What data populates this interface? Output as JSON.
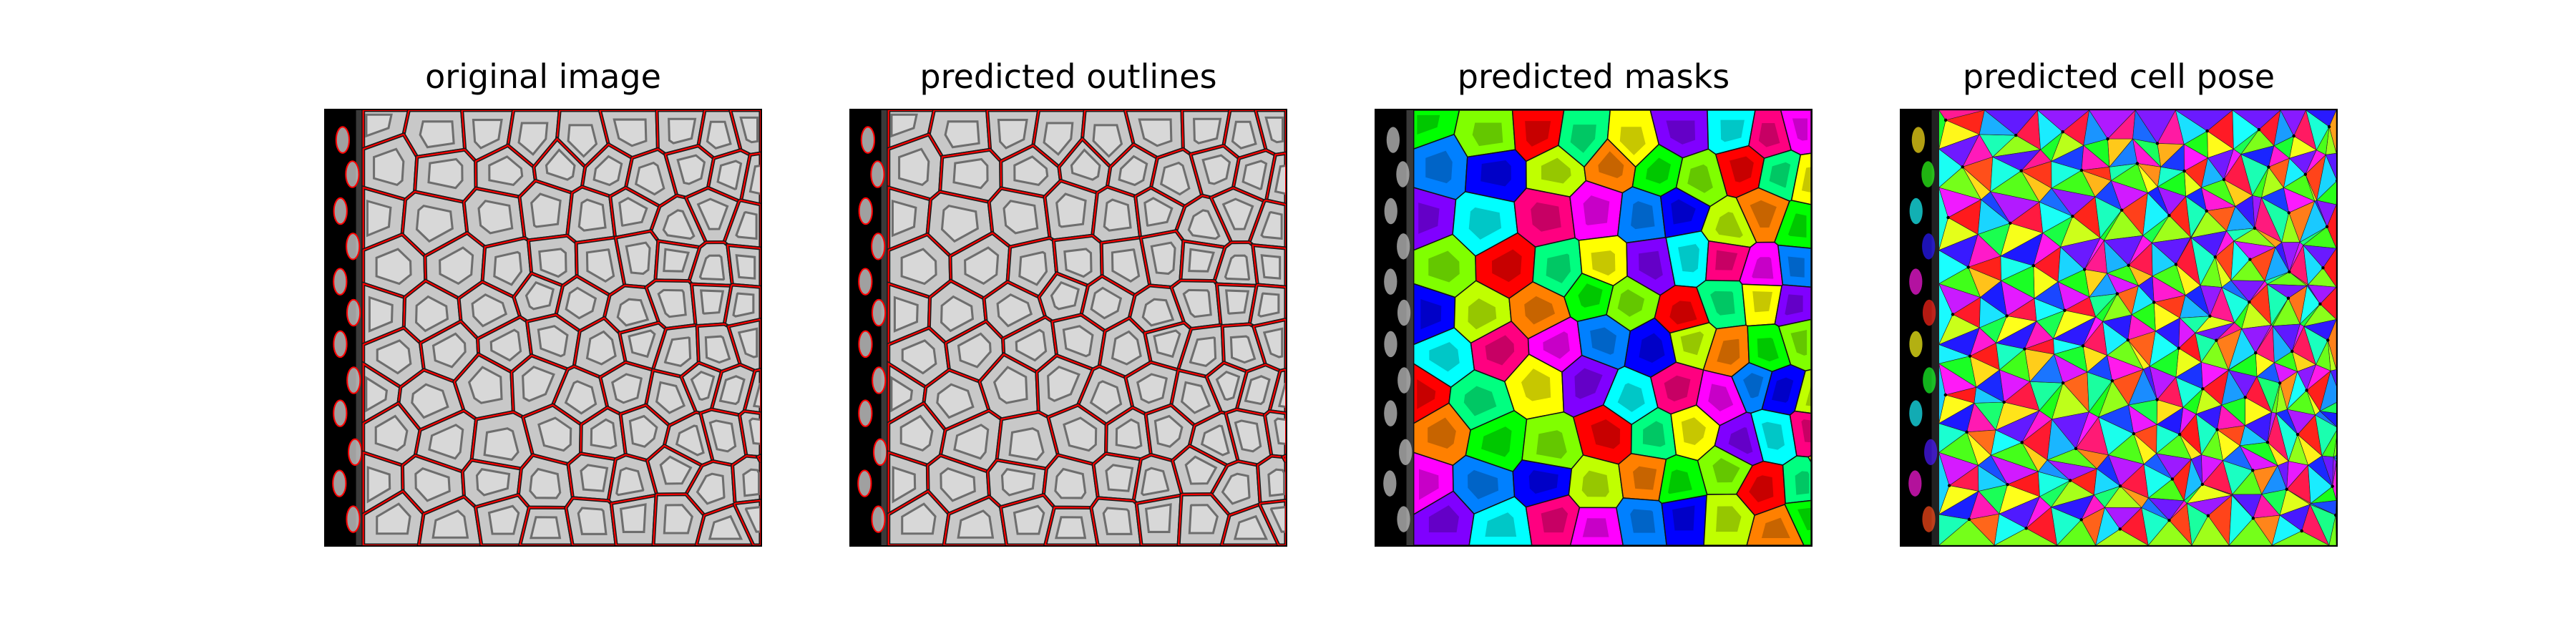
{
  "figure": {
    "panels": [
      {
        "title": "original image",
        "kind": "grayscale"
      },
      {
        "title": "predicted outlines",
        "kind": "outlines"
      },
      {
        "title": "predicted masks",
        "kind": "masks"
      },
      {
        "title": "predicted cell pose",
        "kind": "flows"
      }
    ],
    "colors": {
      "outline": "#ff0000",
      "background": "#000000",
      "cell_gray": "#c8c8c8",
      "nucleus_gray": "#6e6e6e"
    }
  }
}
